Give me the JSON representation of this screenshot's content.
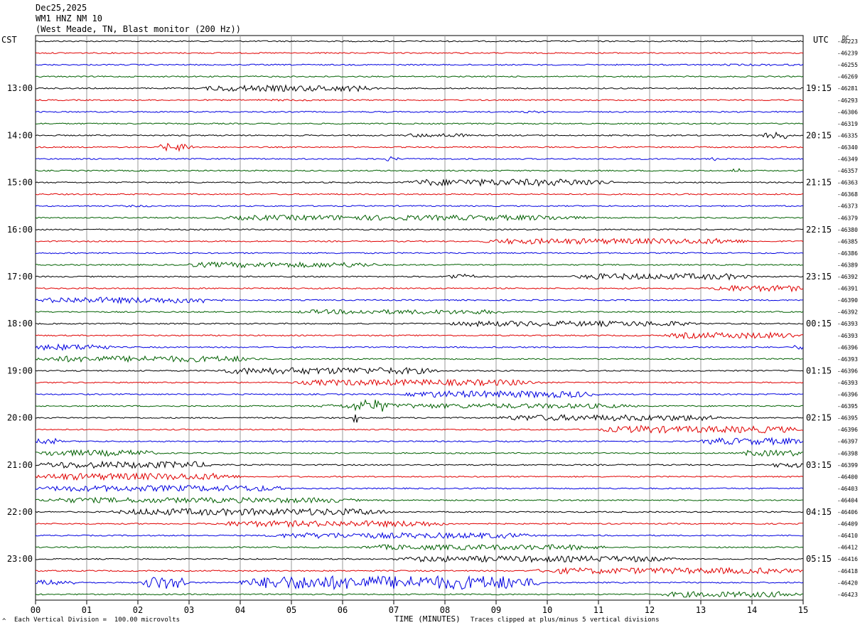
{
  "header": {
    "date": "Dec25,2025",
    "station": "WM1 HNZ NM 10",
    "location": "(West Meade, TN, Blast monitor (200 Hz))"
  },
  "left_timezone": "CST",
  "right_timezone": "UTC",
  "dc_label": "DC",
  "footer": {
    "left_note": "Each Vertical Division =  100.00 microvolts",
    "corner_mark": "^",
    "xlabel": "TIME (MINUTES)",
    "right_note": "Traces clipped at plus/minus 5 vertical divisions"
  },
  "chart_data": {
    "type": "line",
    "title": "WM1 HNZ NM 10",
    "xlabel": "TIME (MINUTES)",
    "xlim": [
      0,
      15
    ],
    "x_ticks": [
      "00",
      "01",
      "02",
      "03",
      "04",
      "05",
      "06",
      "07",
      "08",
      "09",
      "10",
      "11",
      "12",
      "13",
      "14",
      "15"
    ],
    "trace_minutes": 15,
    "trace_colors": [
      "#000000",
      "#e00000",
      "#0000e0",
      "#006000"
    ],
    "left_hour_labels": [
      "13:00",
      "14:00",
      "15:00",
      "16:00",
      "17:00",
      "18:00",
      "19:00",
      "20:00",
      "21:00",
      "22:00",
      "23:00"
    ],
    "right_hour_labels": [
      "19:15",
      "20:15",
      "21:15",
      "22:15",
      "23:15",
      "00:15",
      "01:15",
      "02:15",
      "03:15",
      "04:15",
      "05:15"
    ],
    "dc_offsets": [
      "-46223",
      "-46239",
      "-46255",
      "-46269",
      "-46281",
      "-46293",
      "-46306",
      "-46319",
      "-46335",
      "-46340",
      "-46349",
      "-46357",
      "-46363",
      "-46368",
      "-46373",
      "-46379",
      "-46380",
      "-46385",
      "-46386",
      "-46389",
      "-46392",
      "-46391",
      "-46390",
      "-46392",
      "-46393",
      "-46393",
      "-46396",
      "-46393",
      "-46396",
      "-46393",
      "-46396",
      "-46395",
      "-46395",
      "-46396",
      "-46397",
      "-46398",
      "-46399",
      "-46400",
      "-46403",
      "-46404",
      "-46406",
      "-46409",
      "-46410",
      "-46412",
      "-46416",
      "-46418",
      "-46420",
      "-46423"
    ],
    "traces": [
      {
        "bursts": []
      },
      {
        "bursts": []
      },
      {
        "bursts": [
          [
            13.2,
            15,
            0.5
          ]
        ]
      },
      {
        "bursts": [
          [
            4,
            5,
            0.4
          ]
        ]
      },
      {
        "bursts": [
          [
            3.2,
            6.7,
            1.6
          ]
        ]
      },
      {
        "bursts": [
          [
            4.2,
            5.8,
            0.5
          ]
        ]
      },
      {
        "bursts": [
          [
            9.5,
            10.0,
            0.6
          ]
        ]
      },
      {
        "bursts": [
          [
            12.2,
            12.8,
            0.4
          ]
        ]
      },
      {
        "bursts": [
          [
            7.2,
            8.5,
            1.0
          ],
          [
            14.2,
            14.8,
            1.8
          ]
        ]
      },
      {
        "bursts": [
          [
            2.4,
            3.1,
            2.0
          ]
        ]
      },
      {
        "bursts": [
          [
            6.8,
            7.1,
            1.2
          ],
          [
            13.2,
            13.3,
            1.0
          ]
        ]
      },
      {
        "bursts": [
          [
            13.6,
            13.8,
            1.2
          ]
        ]
      },
      {
        "bursts": [
          [
            7.2,
            11.3,
            1.8
          ]
        ]
      },
      {
        "bursts": [
          [
            8.0,
            8.2,
            0.6
          ]
        ]
      },
      {
        "bursts": [
          [
            1.7,
            2.3,
            0.5
          ]
        ]
      },
      {
        "bursts": [
          [
            3.5,
            10.8,
            1.4
          ]
        ]
      },
      {
        "bursts": []
      },
      {
        "bursts": [
          [
            8.7,
            14.0,
            1.5
          ]
        ]
      },
      {
        "bursts": []
      },
      {
        "bursts": [
          [
            2.8,
            6.8,
            1.4
          ]
        ]
      },
      {
        "bursts": [
          [
            8.0,
            8.6,
            1.4
          ],
          [
            10.5,
            14.0,
            1.6
          ]
        ]
      },
      {
        "bursts": [
          [
            13.2,
            15.0,
            1.6
          ]
        ]
      },
      {
        "bursts": [
          [
            0.0,
            3.7,
            1.6
          ]
        ]
      },
      {
        "bursts": [
          [
            5.0,
            9.3,
            1.2
          ]
        ]
      },
      {
        "bursts": [
          [
            8.0,
            13.0,
            1.4
          ]
        ]
      },
      {
        "bursts": [
          [
            12.3,
            15.0,
            1.6
          ]
        ]
      },
      {
        "bursts": [
          [
            0.0,
            1.5,
            1.6
          ],
          [
            14.8,
            15.0,
            1.2
          ]
        ]
      },
      {
        "bursts": [
          [
            0.0,
            4.4,
            1.6
          ]
        ]
      },
      {
        "bursts": [
          [
            3.5,
            7.9,
            1.8
          ]
        ]
      },
      {
        "bursts": [
          [
            5.0,
            9.9,
            1.6
          ]
        ]
      },
      {
        "bursts": [
          [
            7.2,
            11.0,
            1.8
          ]
        ]
      },
      {
        "bursts": [
          [
            6.2,
            6.9,
            3.4
          ],
          [
            5.4,
            11.8,
            1.3
          ]
        ]
      },
      {
        "bursts": [
          [
            9.0,
            13.5,
            1.6
          ],
          [
            6.2,
            6.3,
            3.0
          ]
        ]
      },
      {
        "bursts": [
          [
            11.0,
            15.0,
            1.8
          ],
          [
            11.8,
            12.0,
            2.6
          ]
        ]
      },
      {
        "bursts": [
          [
            0.0,
            0.5,
            1.6
          ],
          [
            13.0,
            15.0,
            1.8
          ]
        ]
      },
      {
        "bursts": [
          [
            0.0,
            2.4,
            1.6
          ],
          [
            13.8,
            15.0,
            1.6
          ]
        ]
      },
      {
        "bursts": [
          [
            0.0,
            3.5,
            1.8
          ],
          [
            14.4,
            15.0,
            1.4
          ]
        ]
      },
      {
        "bursts": [
          [
            0.0,
            4.0,
            1.8
          ]
        ]
      },
      {
        "bursts": [
          [
            0.0,
            5.0,
            1.6
          ]
        ]
      },
      {
        "bursts": [
          [
            0.0,
            6.4,
            1.4
          ]
        ]
      },
      {
        "bursts": [
          [
            1.5,
            7.0,
            1.8
          ]
        ]
      },
      {
        "bursts": [
          [
            3.5,
            8.1,
            1.6
          ]
        ]
      },
      {
        "bursts": [
          [
            4.5,
            9.8,
            1.5
          ]
        ]
      },
      {
        "bursts": [
          [
            6.3,
            11.2,
            1.4
          ]
        ]
      },
      {
        "bursts": [
          [
            7.0,
            12.5,
            1.6
          ]
        ]
      },
      {
        "bursts": [
          [
            9.7,
            15.0,
            1.6
          ]
        ]
      },
      {
        "bursts": [
          [
            0.0,
            0.8,
            1.4
          ],
          [
            2.1,
            3.0,
            3.4
          ],
          [
            4.0,
            9.9,
            3.6
          ]
        ]
      },
      {
        "bursts": [
          [
            12.2,
            15.0,
            1.5
          ]
        ]
      }
    ]
  }
}
